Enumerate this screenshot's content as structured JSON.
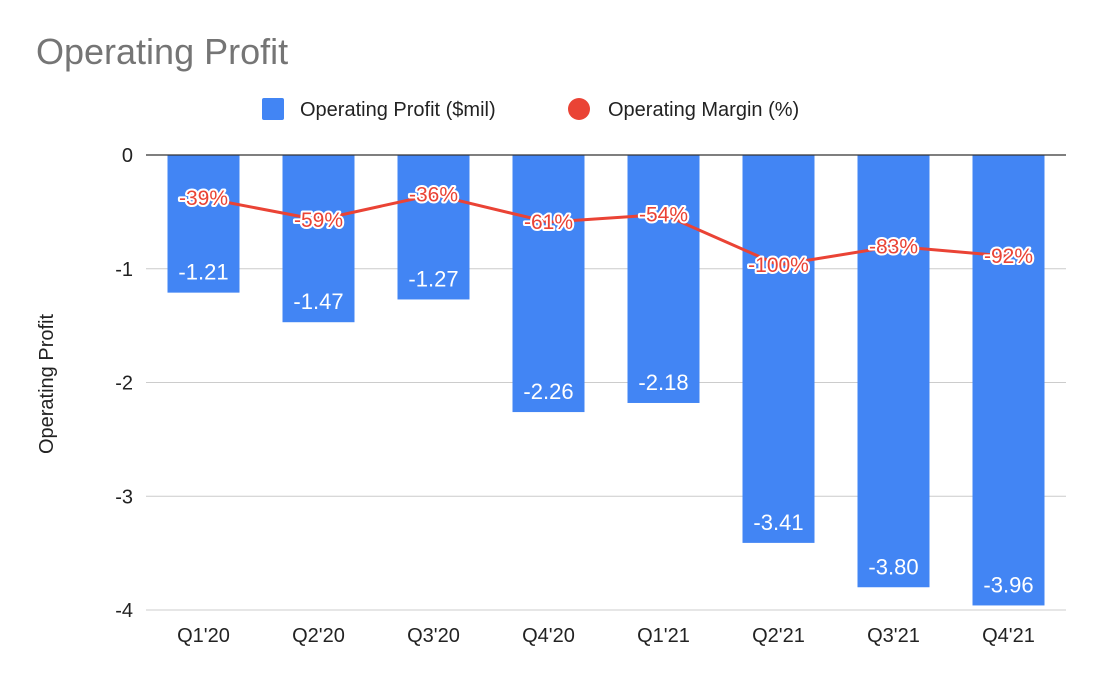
{
  "chart_data": {
    "type": "bar",
    "title": "Operating Profit",
    "ylabel": "Operating Profit",
    "xlabel": "",
    "categories": [
      "Q1'20",
      "Q2'20",
      "Q3'20",
      "Q4'20",
      "Q1'21",
      "Q2'21",
      "Q3'21",
      "Q4'21"
    ],
    "ylim": [
      -4,
      0
    ],
    "yticks": [
      "0",
      "-1",
      "-2",
      "-3",
      "-4"
    ],
    "grid": true,
    "legend_position": "top",
    "series": [
      {
        "name": "Operating Profit ($mil)",
        "type": "bar",
        "color": "#4285f4",
        "values": [
          -1.21,
          -1.47,
          -1.27,
          -2.26,
          -2.18,
          -3.41,
          -3.8,
          -3.96
        ],
        "labels": [
          "-1.21",
          "-1.47",
          "-1.27",
          "-2.26",
          "-2.18",
          "-3.41",
          "-3.80",
          "-3.96"
        ]
      },
      {
        "name": "Operating Margin (%)",
        "type": "line",
        "color": "#ea4335",
        "values": [
          -39,
          -59,
          -36,
          -61,
          -54,
          -100,
          -83,
          -92
        ],
        "labels": [
          "-39%",
          "-59%",
          "-36%",
          "-61%",
          "-54%",
          "-100%",
          "-83%",
          "-92%"
        ]
      }
    ]
  }
}
